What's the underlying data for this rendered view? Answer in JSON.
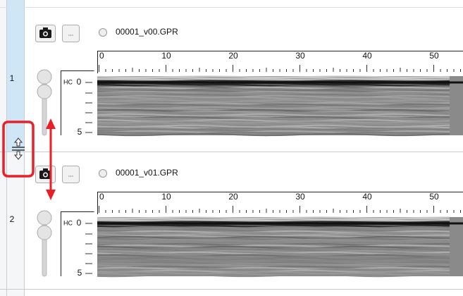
{
  "rows": [
    {
      "number": "1",
      "button_label": "...",
      "file": "00001_v00.GPR",
      "ruler_labels": [
        "0",
        "10",
        "20",
        "30",
        "40",
        "50"
      ],
      "depth_unit": "HC",
      "depth_labels": [
        "0",
        "5"
      ]
    },
    {
      "number": "2",
      "button_label": "...",
      "file": "00001_v01.GPR",
      "ruler_labels": [
        "0",
        "10",
        "20",
        "30",
        "40",
        "50"
      ],
      "depth_unit": "HC",
      "depth_labels": [
        "0",
        "5"
      ]
    }
  ]
}
